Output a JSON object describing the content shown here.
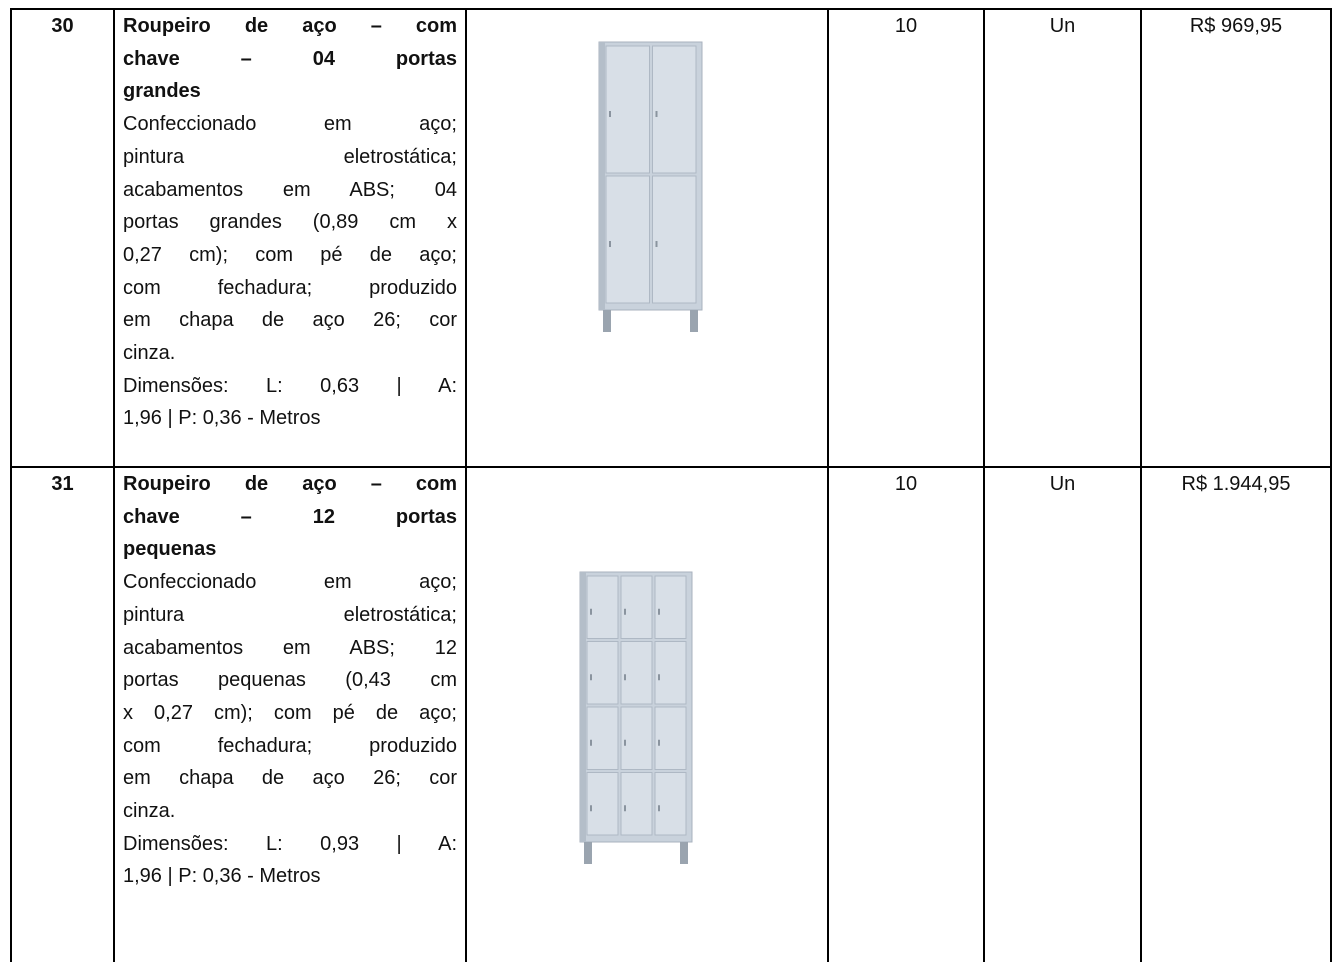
{
  "table": {
    "rows": [
      {
        "item": "30",
        "title_lines": [
          "Roupeiro de aço – com",
          "chave – 04 portas",
          "grandes"
        ],
        "description_lines": [
          "Confeccionado em aço;",
          "pintura eletrostática;",
          "acabamentos em ABS; 04",
          "portas grandes (0,89 cm x",
          "0,27 cm); com pé de aço;",
          "com fechadura; produzido",
          "em chapa de aço 26; cor",
          "cinza."
        ],
        "dimension_lines": [
          "Dimensões: L: 0,63 | A:",
          "1,96 | P: 0,36 - Metros"
        ],
        "quantity": "10",
        "unit": "Un",
        "price": "R$ 969,95"
      },
      {
        "item": "31",
        "title_lines": [
          "Roupeiro de aço – com",
          "chave – 12 portas",
          "pequenas"
        ],
        "description_lines": [
          "Confeccionado em aço;",
          "pintura eletrostática;",
          "acabamentos em ABS; 12",
          "portas pequenas (0,43 cm",
          "x 0,27 cm); com pé de aço;",
          "com fechadura; produzido",
          "em chapa de aço 26; cor",
          "cinza."
        ],
        "dimension_lines": [
          "Dimensões: L: 0,93 | A:",
          "1,96 | P: 0,36 - Metros"
        ],
        "quantity": "10",
        "unit": "Un",
        "price": "R$ 1.944,95"
      }
    ]
  }
}
